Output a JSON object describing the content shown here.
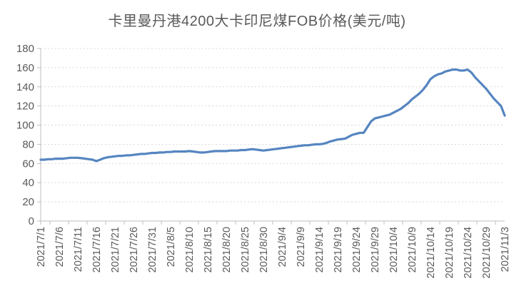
{
  "chart_data": {
    "type": "line",
    "title": "卡里曼丹港4200大卡印尼煤FOB价格(美元/吨)",
    "xlabel": "",
    "ylabel": "",
    "ylim": [
      0,
      180
    ],
    "y_ticks": [
      0,
      20,
      40,
      60,
      80,
      100,
      120,
      140,
      160,
      180
    ],
    "grid": "horizontal-dotted",
    "legend": "none",
    "line_color": "#5585c0",
    "axis_color": "#bfbfbf",
    "gridline_color": "#d9d9d9",
    "label_color": "#595959",
    "x_tick_labels": [
      "2021/7/1",
      "2021/7/6",
      "2021/7/11",
      "2021/7/16",
      "2021/7/21",
      "2021/7/26",
      "2021/7/31",
      "2021/8/5",
      "2021/8/10",
      "2021/8/15",
      "2021/8/20",
      "2021/8/25",
      "2021/8/30",
      "2021/9/4",
      "2021/9/9",
      "2021/9/14",
      "2021/9/19",
      "2021/9/24",
      "2021/9/29",
      "2021/10/4",
      "2021/10/9",
      "2021/10/14",
      "2021/10/19",
      "2021/10/24",
      "2021/10/29",
      "2021/11/3"
    ],
    "points_per_tick_interval": 5,
    "values": [
      64,
      64,
      64.5,
      64.5,
      65,
      65,
      65,
      65.5,
      66,
      66,
      66,
      65.5,
      65,
      64.5,
      64,
      62.5,
      64,
      65.5,
      66.5,
      67,
      67.5,
      68,
      68,
      68.5,
      68.5,
      69,
      69.5,
      70,
      70,
      70.5,
      71,
      71,
      71.5,
      71.5,
      72,
      72,
      72.5,
      72.5,
      72.5,
      72.5,
      73,
      72.5,
      72,
      71.5,
      71.5,
      72,
      72.5,
      73,
      73,
      73,
      73,
      73.5,
      73.5,
      73.5,
      74,
      74,
      74.5,
      75,
      74.5,
      74,
      73.5,
      74,
      74.5,
      75,
      75.5,
      76,
      76.5,
      77,
      77.5,
      78,
      78.5,
      79,
      79,
      79.5,
      80,
      80,
      80.5,
      81.5,
      83,
      84,
      85,
      85.5,
      86,
      88,
      90,
      91,
      92,
      92,
      98,
      104,
      107,
      108,
      109,
      110,
      111,
      113,
      115,
      117,
      120,
      123,
      127,
      130,
      133,
      137,
      142,
      148,
      151,
      153,
      154,
      156,
      157,
      158,
      158,
      157,
      157,
      158,
      155,
      150,
      146,
      142,
      138,
      133,
      128,
      124,
      120,
      110
    ]
  }
}
